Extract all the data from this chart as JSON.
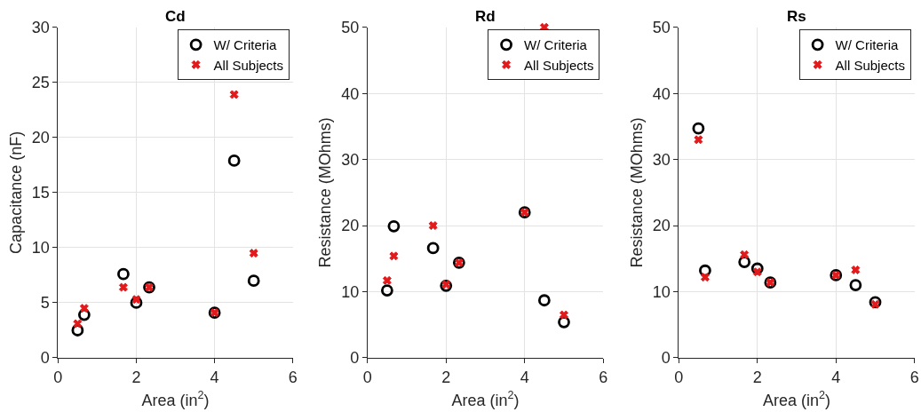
{
  "chart_data": [
    {
      "type": "scatter",
      "title": "Cd",
      "xlabel": "Area (in$^{2}$)",
      "ylabel": "Capacitance (nF)",
      "x": [
        0.5,
        0.67,
        1.67,
        2,
        2.33,
        4,
        4.5,
        5
      ],
      "xlim": [
        0,
        6
      ],
      "xticks": [
        0,
        2,
        4,
        6
      ],
      "ylim": [
        0,
        30
      ],
      "yticks": [
        0,
        5,
        10,
        15,
        20,
        25,
        30
      ],
      "grid": true,
      "legend": "top right",
      "series": [
        {
          "name": "W/ Criteria",
          "color": "#000000",
          "marker": "circle",
          "values": [
            2.5,
            3.9,
            7.6,
            5.0,
            6.4,
            4.1,
            17.9,
            7.0
          ]
        },
        {
          "name": "All Subjects",
          "color": "#e31a1c",
          "marker": "cross",
          "values": [
            3.1,
            4.5,
            6.4,
            5.3,
            6.4,
            4.1,
            23.9,
            9.5
          ]
        }
      ]
    },
    {
      "type": "scatter",
      "title": "Rd",
      "xlabel": "Area (in$^{2}$)",
      "ylabel": "Resistance (MOhms)",
      "x": [
        0.5,
        0.67,
        1.67,
        2,
        2.33,
        4,
        4.5,
        5
      ],
      "xlim": [
        0,
        6
      ],
      "xticks": [
        0,
        2,
        4,
        6
      ],
      "ylim": [
        0,
        50
      ],
      "yticks": [
        0,
        10,
        20,
        30,
        40,
        50
      ],
      "grid": true,
      "legend": "top right",
      "series": [
        {
          "name": "W/ Criteria",
          "color": "#000000",
          "marker": "circle",
          "values": [
            10.2,
            19.9,
            16.6,
            10.9,
            14.4,
            22.0,
            8.7,
            5.4
          ]
        },
        {
          "name": "All Subjects",
          "color": "#e31a1c",
          "marker": "cross",
          "values": [
            11.7,
            15.4,
            20.0,
            11.1,
            14.4,
            22.0,
            50,
            6.5
          ]
        }
      ]
    },
    {
      "type": "scatter",
      "title": "Rs",
      "xlabel": "Area (in$^{2}$)",
      "ylabel": "Resistance (MOhms)",
      "x": [
        0.5,
        0.67,
        1.67,
        2,
        2.33,
        4,
        4.5,
        5
      ],
      "xlim": [
        0,
        6
      ],
      "xticks": [
        0,
        2,
        4,
        6
      ],
      "ylim": [
        0,
        50
      ],
      "yticks": [
        0,
        10,
        20,
        30,
        40,
        50
      ],
      "grid": true,
      "legend": "top right",
      "series": [
        {
          "name": "W/ Criteria",
          "color": "#000000",
          "marker": "circle",
          "values": [
            34.7,
            13.2,
            14.5,
            13.5,
            11.4,
            12.5,
            11.0,
            8.4
          ]
        },
        {
          "name": "All Subjects",
          "color": "#e31a1c",
          "marker": "cross",
          "values": [
            33.0,
            12.2,
            15.6,
            13.0,
            11.4,
            12.5,
            13.3,
            8.1
          ]
        }
      ]
    }
  ]
}
